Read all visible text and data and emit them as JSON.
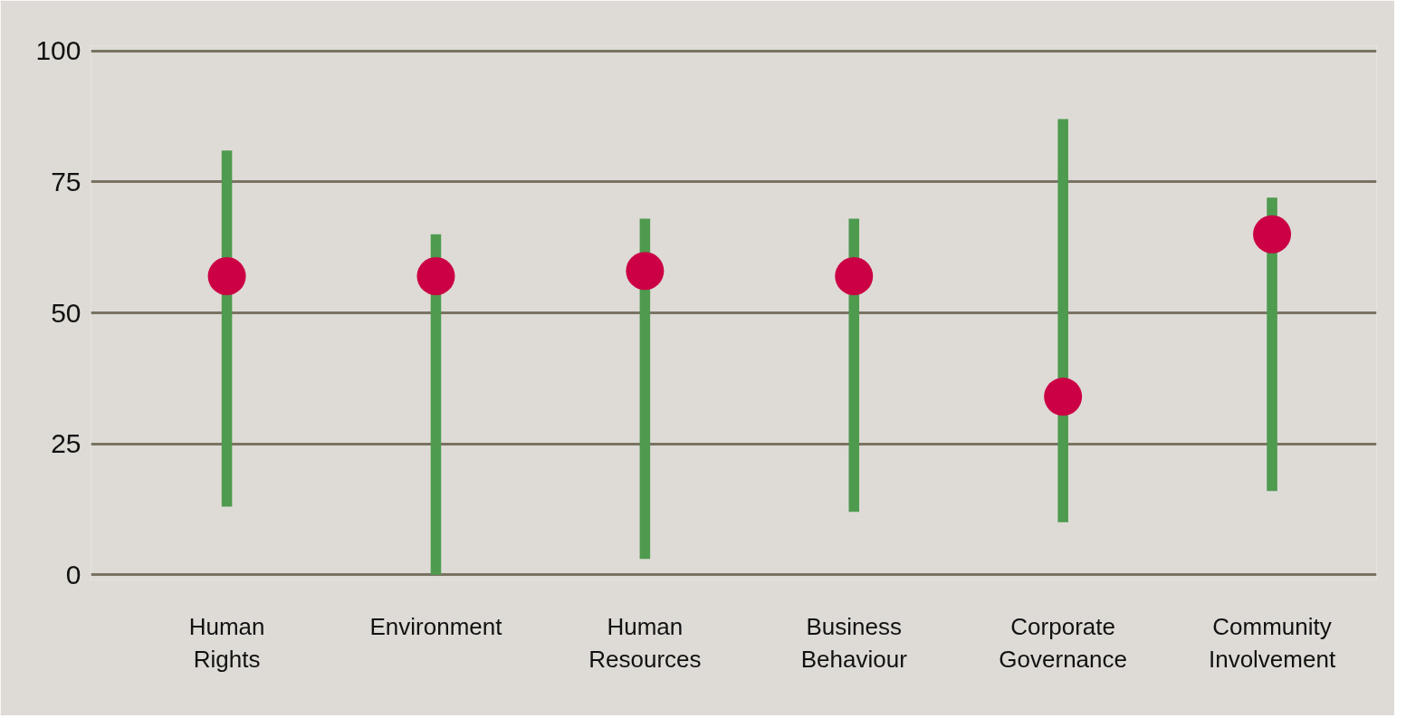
{
  "chart_data": {
    "type": "bar",
    "categories": [
      "Human\nRights",
      "Environment",
      "Human\nResources",
      "Business\nBehaviour",
      "Corporate\nGovernance",
      "Community\nInvolvement"
    ],
    "series": [
      {
        "color": "#4e9a4f",
        "base": [
          13,
          0,
          3,
          12,
          10,
          16
        ],
        "values": [
          68,
          65,
          65,
          56,
          77,
          56
        ]
      },
      {
        "type": "scatter",
        "color": "#cc0044",
        "marker": "circle",
        "x": [
          "Human\nRights",
          "Environment",
          "Human\nResources",
          "Business\nBehaviour",
          "Corporate\nGovernance",
          "Community\nInvolvement"
        ],
        "values": [
          57,
          57,
          58,
          57,
          34,
          65
        ]
      }
    ],
    "ylim": [
      0,
      100
    ],
    "yticks": [
      0,
      25,
      50,
      75,
      100
    ],
    "grid": "y"
  }
}
